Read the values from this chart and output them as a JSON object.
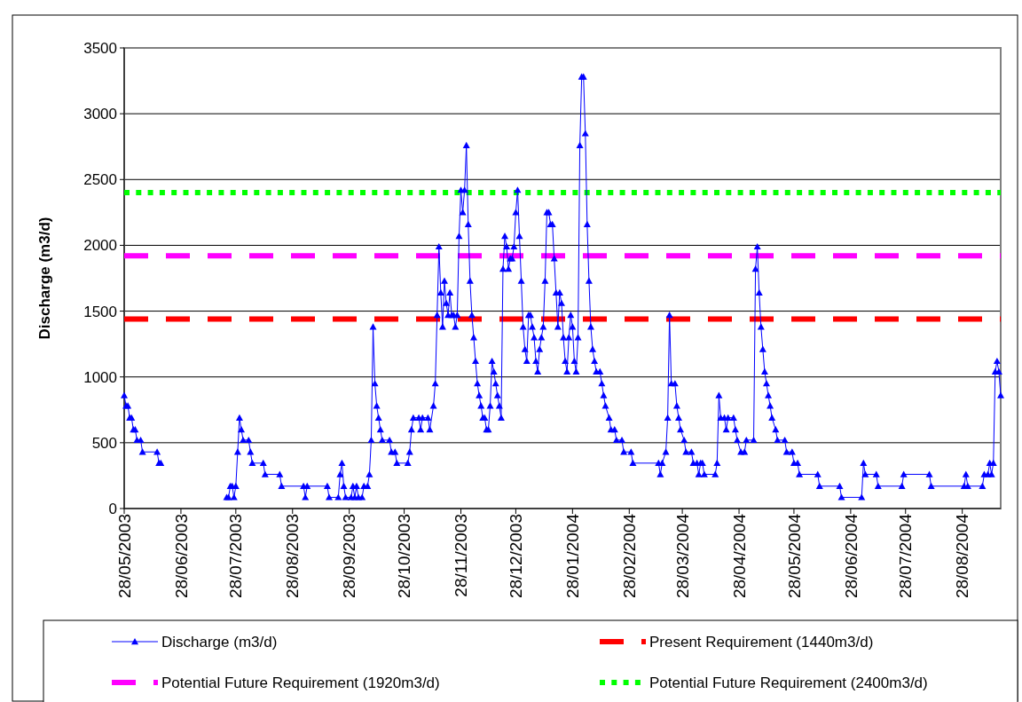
{
  "chart_data": {
    "type": "line",
    "ylabel": "Discharge (m3/d)",
    "xlim": [
      "2003-05-28",
      "2004-09-18"
    ],
    "ylim": [
      0,
      3500
    ],
    "yticks": [
      0,
      500,
      1000,
      1500,
      2000,
      2500,
      3000,
      3500
    ],
    "xticks": [
      {
        "value": "2003-05-28",
        "label": "28/05/2003"
      },
      {
        "value": "2003-06-28",
        "label": "28/06/2003"
      },
      {
        "value": "2003-07-28",
        "label": "28/07/2003"
      },
      {
        "value": "2003-08-28",
        "label": "28/08/2003"
      },
      {
        "value": "2003-09-28",
        "label": "28/09/2003"
      },
      {
        "value": "2003-10-28",
        "label": "28/10/2003"
      },
      {
        "value": "2003-11-28",
        "label": "28/11/2003"
      },
      {
        "value": "2003-12-28",
        "label": "28/12/2003"
      },
      {
        "value": "2004-01-28",
        "label": "28/01/2004"
      },
      {
        "value": "2004-02-28",
        "label": "28/02/2004"
      },
      {
        "value": "2004-03-28",
        "label": "28/03/2004"
      },
      {
        "value": "2004-04-28",
        "label": "28/04/2004"
      },
      {
        "value": "2004-05-28",
        "label": "28/05/2004"
      },
      {
        "value": "2004-06-28",
        "label": "28/06/2004"
      },
      {
        "value": "2004-07-28",
        "label": "28/07/2004"
      },
      {
        "value": "2004-08-28",
        "label": "28/08/2004"
      }
    ],
    "grid": "y",
    "legend": "bottom",
    "series": [
      {
        "name": "Discharge (m3/d)",
        "color": "#0000ff",
        "marker": "triangle",
        "line_style": "solid",
        "x": [
          "2003-05-28",
          "2003-05-29",
          "2003-05-30",
          "2003-05-31",
          "2003-06-01",
          "2003-06-02",
          "2003-06-03",
          "2003-06-04",
          "2003-06-06",
          "2003-06-07",
          "2003-06-15",
          "2003-06-16",
          "2003-06-17",
          "2003-06-18",
          "2003-07-23",
          "2003-07-24",
          "2003-07-25",
          "2003-07-26",
          "2003-07-27",
          "2003-07-28",
          "2003-07-29",
          "2003-07-30",
          "2003-07-31",
          "2003-08-01",
          "2003-08-04",
          "2003-08-05",
          "2003-08-06",
          "2003-08-12",
          "2003-08-13",
          "2003-08-21",
          "2003-08-22",
          "2003-09-03",
          "2003-09-04",
          "2003-09-05",
          "2003-09-16",
          "2003-09-17",
          "2003-09-22",
          "2003-09-23",
          "2003-09-24",
          "2003-09-25",
          "2003-09-26",
          "2003-09-29",
          "2003-09-30",
          "2003-10-01",
          "2003-10-02",
          "2003-10-03",
          "2003-10-05",
          "2003-10-06",
          "2003-10-08",
          "2003-10-09",
          "2003-10-10",
          "2003-10-11",
          "2003-10-12",
          "2003-10-13",
          "2003-10-14",
          "2003-10-15",
          "2003-10-16",
          "2003-10-20",
          "2003-10-21",
          "2003-10-23",
          "2003-10-24",
          "2003-10-30",
          "2003-10-31",
          "2003-11-01",
          "2003-11-02",
          "2003-11-05",
          "2003-11-06",
          "2003-11-07",
          "2003-11-10",
          "2003-11-11",
          "2003-11-13",
          "2003-11-14",
          "2003-11-15",
          "2003-11-16",
          "2003-11-17",
          "2003-11-18",
          "2003-11-19",
          "2003-11-20",
          "2003-11-21",
          "2003-11-22",
          "2003-11-23",
          "2003-11-24",
          "2003-11-25",
          "2003-11-26",
          "2003-11-27",
          "2003-11-28",
          "2003-11-29",
          "2003-11-30",
          "2003-12-01",
          "2003-12-02",
          "2003-12-03",
          "2003-12-04",
          "2003-12-05",
          "2003-12-06",
          "2003-12-07",
          "2003-12-08",
          "2003-12-09",
          "2003-12-10",
          "2003-12-11",
          "2003-12-12",
          "2003-12-13",
          "2003-12-14",
          "2003-12-15",
          "2003-12-16",
          "2003-12-17",
          "2003-12-18",
          "2003-12-19",
          "2003-12-20",
          "2003-12-21",
          "2003-12-22",
          "2003-12-23",
          "2003-12-24",
          "2003-12-25",
          "2003-12-26",
          "2003-12-27",
          "2003-12-28",
          "2003-12-29",
          "2003-12-30",
          "2003-12-31",
          "2004-01-01",
          "2004-01-02",
          "2004-01-03",
          "2004-01-04",
          "2004-01-05",
          "2004-01-06",
          "2004-01-07",
          "2004-01-08",
          "2004-01-09",
          "2004-01-10",
          "2004-01-11",
          "2004-01-12",
          "2004-01-13",
          "2004-01-14",
          "2004-01-15",
          "2004-01-16",
          "2004-01-17",
          "2004-01-18",
          "2004-01-19",
          "2004-01-20",
          "2004-01-21",
          "2004-01-22",
          "2004-01-23",
          "2004-01-24",
          "2004-01-25",
          "2004-01-26",
          "2004-01-27",
          "2004-01-28",
          "2004-01-29",
          "2004-01-30",
          "2004-01-31",
          "2004-02-01",
          "2004-02-02",
          "2004-02-03",
          "2004-02-04",
          "2004-02-05",
          "2004-02-06",
          "2004-02-07",
          "2004-02-08",
          "2004-02-09",
          "2004-02-10",
          "2004-02-12",
          "2004-02-13",
          "2004-02-14",
          "2004-02-15",
          "2004-02-17",
          "2004-02-18",
          "2004-02-20",
          "2004-02-21",
          "2004-02-24",
          "2004-02-25",
          "2004-02-29",
          "2004-03-01",
          "2004-03-15",
          "2004-03-16",
          "2004-03-17",
          "2004-03-19",
          "2004-03-20",
          "2004-03-21",
          "2004-03-22",
          "2004-03-24",
          "2004-03-25",
          "2004-03-26",
          "2004-03-27",
          "2004-03-29",
          "2004-03-30",
          "2004-04-02",
          "2004-04-03",
          "2004-04-05",
          "2004-04-06",
          "2004-04-07",
          "2004-04-08",
          "2004-04-09",
          "2004-04-15",
          "2004-04-16",
          "2004-04-17",
          "2004-04-18",
          "2004-04-20",
          "2004-04-21",
          "2004-04-22",
          "2004-04-25",
          "2004-04-26",
          "2004-04-27",
          "2004-04-29",
          "2004-05-01",
          "2004-05-02",
          "2004-05-06",
          "2004-05-07",
          "2004-05-08",
          "2004-05-09",
          "2004-05-10",
          "2004-05-11",
          "2004-05-12",
          "2004-05-13",
          "2004-05-14",
          "2004-05-15",
          "2004-05-16",
          "2004-05-18",
          "2004-05-19",
          "2004-05-23",
          "2004-05-24",
          "2004-05-27",
          "2004-05-28",
          "2004-05-30",
          "2004-05-31",
          "2004-06-10",
          "2004-06-11",
          "2004-06-22",
          "2004-06-23",
          "2004-07-04",
          "2004-07-05",
          "2004-07-06",
          "2004-07-12",
          "2004-07-13",
          "2004-07-26",
          "2004-07-27",
          "2004-08-10",
          "2004-08-11",
          "2004-08-29",
          "2004-08-30",
          "2004-08-31",
          "2004-09-08",
          "2004-09-09",
          "2004-09-11",
          "2004-09-12",
          "2004-09-13",
          "2004-09-14",
          "2004-09-15",
          "2004-09-16",
          "2004-09-17",
          "2004-09-18"
        ],
        "values": [
          860,
          780,
          780,
          690,
          690,
          600,
          600,
          520,
          520,
          430,
          430,
          345,
          345,
          null,
          85,
          85,
          170,
          170,
          85,
          170,
          430,
          690,
          600,
          520,
          520,
          430,
          345,
          345,
          260,
          260,
          170,
          170,
          85,
          170,
          170,
          85,
          85,
          260,
          345,
          170,
          85,
          85,
          170,
          85,
          170,
          85,
          85,
          170,
          170,
          260,
          520,
          1380,
          950,
          780,
          690,
          600,
          520,
          520,
          430,
          430,
          345,
          345,
          430,
          600,
          690,
          690,
          600,
          690,
          690,
          600,
          780,
          950,
          1470,
          1990,
          1640,
          1380,
          1730,
          1560,
          1470,
          1640,
          1470,
          1470,
          1380,
          1470,
          2070,
          2420,
          2250,
          2420,
          2760,
          2160,
          1730,
          1470,
          1300,
          1120,
          950,
          860,
          780,
          690,
          690,
          600,
          600,
          780,
          1120,
          1040,
          950,
          860,
          780,
          690,
          1820,
          2070,
          1990,
          1820,
          1900,
          1900,
          1990,
          2250,
          2420,
          2070,
          1730,
          1380,
          1210,
          1120,
          1470,
          1470,
          1380,
          1300,
          1120,
          1040,
          1210,
          1300,
          1380,
          1730,
          2250,
          2250,
          2160,
          2160,
          1900,
          1640,
          1380,
          1640,
          1560,
          1300,
          1120,
          1040,
          1300,
          1470,
          1380,
          1120,
          1040,
          1300,
          2760,
          3280,
          3280,
          2850,
          2160,
          1730,
          1380,
          1210,
          1120,
          1040,
          1040,
          950,
          860,
          780,
          690,
          600,
          600,
          520,
          520,
          430,
          430,
          345,
          345,
          260,
          345,
          430,
          690,
          1470,
          950,
          950,
          780,
          690,
          600,
          520,
          430,
          430,
          345,
          345,
          260,
          345,
          345,
          260,
          260,
          345,
          860,
          690,
          690,
          600,
          690,
          690,
          600,
          520,
          430,
          430,
          520,
          520,
          1820,
          1990,
          1640,
          1380,
          1210,
          1040,
          950,
          860,
          780,
          690,
          600,
          520,
          520,
          430,
          430,
          345,
          345,
          260,
          260,
          170,
          170,
          85,
          85,
          345,
          260,
          260,
          170,
          170,
          260,
          260,
          170,
          170,
          260,
          170,
          170,
          260,
          260,
          345,
          260,
          345,
          1040,
          1120,
          1040,
          860
        ]
      },
      {
        "name": "Present Requirement (1440m3/d)",
        "color": "#ff0000",
        "line_style": "dashed",
        "x": [
          "2003-05-28",
          "2004-09-18"
        ],
        "values": [
          1440,
          1440
        ]
      },
      {
        "name": "Potential Future Requirement (1920m3/d)",
        "color": "#ff00ff",
        "line_style": "dashed",
        "x": [
          "2003-05-28",
          "2004-09-18"
        ],
        "values": [
          1920,
          1920
        ]
      },
      {
        "name": "Potential Future Requirement (2400m3/d)",
        "color": "#00ff00",
        "line_style": "dotted",
        "x": [
          "2003-05-28",
          "2004-09-18"
        ],
        "values": [
          2400,
          2400
        ]
      }
    ]
  }
}
